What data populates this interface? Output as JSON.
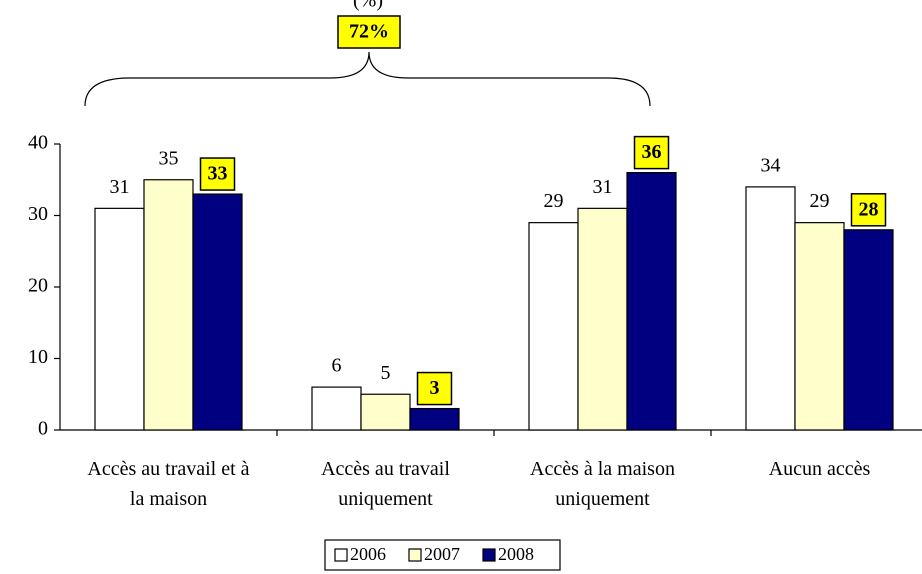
{
  "chart_data": {
    "type": "bar",
    "subtitle": "(%)",
    "categories": [
      "Accès au travail et à la maison",
      "Accès au travail uniquement",
      "Accès à la maison uniquement",
      "Aucun accès"
    ],
    "series": [
      {
        "name": "2006",
        "color": "#ffffff",
        "values": [
          31,
          6,
          29,
          34
        ]
      },
      {
        "name": "2007",
        "color": "#ffffcc",
        "values": [
          35,
          5,
          31,
          29
        ]
      },
      {
        "name": "2008",
        "color": "#000080",
        "values": [
          33,
          3,
          36,
          28
        ],
        "highlight": "#ffff00"
      }
    ],
    "annotation": "72%",
    "ylim": [
      0,
      40
    ],
    "yticks": [
      0,
      10,
      20,
      30,
      40
    ],
    "grid": false,
    "legend": "bottom"
  }
}
